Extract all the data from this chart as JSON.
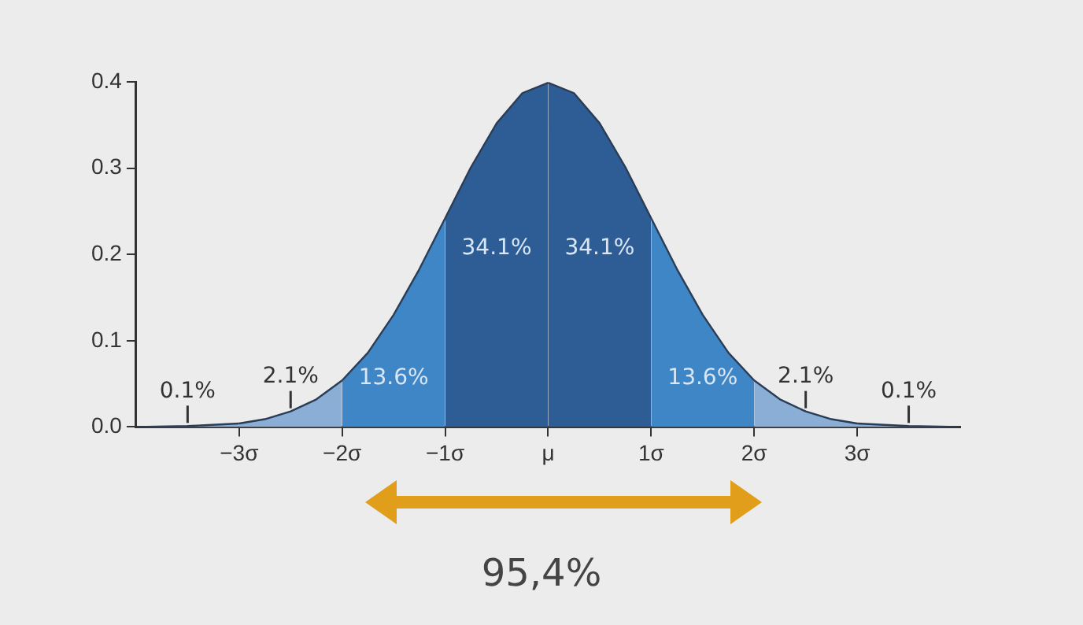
{
  "chart_data": {
    "type": "area",
    "xlim": [
      -4,
      4
    ],
    "xticks": [
      {
        "value": -3,
        "label": "−3σ"
      },
      {
        "value": -2,
        "label": "−2σ"
      },
      {
        "value": -1,
        "label": "−1σ"
      },
      {
        "value": 0,
        "label": "μ"
      },
      {
        "value": 1,
        "label": "1σ"
      },
      {
        "value": 2,
        "label": "2σ"
      },
      {
        "value": 3,
        "label": "3σ"
      }
    ],
    "ylim": [
      0,
      0.4
    ],
    "yticks": [
      {
        "value": 0,
        "label": "0.0"
      },
      {
        "value": 0.1,
        "label": "0.1"
      },
      {
        "value": 0.2,
        "label": "0.2"
      },
      {
        "value": 0.3,
        "label": "0.3"
      },
      {
        "value": 0.4,
        "label": "0.4"
      }
    ],
    "grid": false,
    "legend": false,
    "series": [
      {
        "name": "0.1%",
        "color": "#8aaed6",
        "x": [
          -4,
          -3.5,
          -3
        ],
        "values": [
          0,
          0.001,
          0.004
        ]
      },
      {
        "name": "2.1%",
        "color": "#8aaed6",
        "x": [
          -3,
          -2.75,
          -2.5,
          -2.25,
          -2
        ],
        "values": [
          0.004,
          0.009,
          0.018,
          0.032,
          0.054
        ]
      },
      {
        "name": "13.6%",
        "color": "#3f86c6",
        "x": [
          -2,
          -1.75,
          -1.5,
          -1.25,
          -1
        ],
        "values": [
          0.054,
          0.086,
          0.13,
          0.183,
          0.242
        ]
      },
      {
        "name": "34.1%",
        "color": "#2e5d96",
        "x": [
          -1,
          -0.75,
          -0.5,
          -0.25,
          0
        ],
        "values": [
          0.242,
          0.301,
          0.352,
          0.387,
          0.399
        ]
      },
      {
        "name": "34.1%",
        "color": "#2e5d96",
        "x": [
          0,
          0.25,
          0.5,
          0.75,
          1
        ],
        "values": [
          0.399,
          0.387,
          0.352,
          0.301,
          0.242
        ]
      },
      {
        "name": "13.6%",
        "color": "#3f86c6",
        "x": [
          1,
          1.25,
          1.5,
          1.75,
          2
        ],
        "values": [
          0.242,
          0.183,
          0.13,
          0.086,
          0.054
        ]
      },
      {
        "name": "2.1%",
        "color": "#8aaed6",
        "x": [
          2,
          2.25,
          2.5,
          2.75,
          3
        ],
        "values": [
          0.054,
          0.032,
          0.018,
          0.009,
          0.004
        ]
      },
      {
        "name": "0.1%",
        "color": "#8aaed6",
        "x": [
          3,
          3.5,
          4
        ],
        "values": [
          0.004,
          0.001,
          0
        ]
      }
    ],
    "annotations": [
      "95,4%"
    ]
  }
}
